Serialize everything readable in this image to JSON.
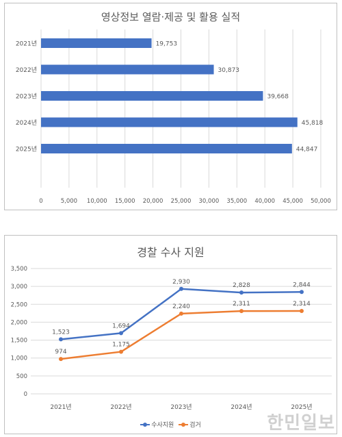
{
  "chart_data": [
    {
      "type": "bar",
      "orientation": "horizontal",
      "title": "영상정보 열람·제공 및 활용 실적",
      "categories": [
        "2021년",
        "2022년",
        "2023년",
        "2024년",
        "2025년"
      ],
      "values": [
        19753,
        30873,
        39668,
        45818,
        44847
      ],
      "value_labels": [
        "19,753",
        "30,873",
        "39,668",
        "45,818",
        "44,847"
      ],
      "xlim": [
        0,
        50000
      ],
      "x_ticks": [
        0,
        5000,
        10000,
        15000,
        20000,
        25000,
        30000,
        35000,
        40000,
        45000,
        50000
      ],
      "x_tick_labels": [
        "0",
        "5,000",
        "10,000",
        "15,000",
        "20,000",
        "25,000",
        "30,000",
        "35,000",
        "40,000",
        "45,000",
        "50,000"
      ],
      "grid": "vertical",
      "color": "#4472c4"
    },
    {
      "type": "line",
      "title": "경찰 수사 지원",
      "categories": [
        "2021년",
        "2022년",
        "2023년",
        "2024년",
        "2025년"
      ],
      "series": [
        {
          "name": "수사지원",
          "values": [
            1523,
            1694,
            2930,
            2828,
            2844
          ],
          "labels": [
            "1,523",
            "1,694",
            "2,930",
            "2,828",
            "2,844"
          ],
          "color": "#4472c4"
        },
        {
          "name": "검거",
          "values": [
            974,
            1175,
            2240,
            2311,
            2314
          ],
          "labels": [
            "974",
            "1,175",
            "2,240",
            "2,311",
            "2,314"
          ],
          "color": "#ed7d31"
        }
      ],
      "ylim": [
        0,
        3500
      ],
      "y_ticks": [
        0,
        500,
        1000,
        1500,
        2000,
        2500,
        3000,
        3500
      ],
      "y_tick_labels": [
        "0",
        "500",
        "1,000",
        "1,500",
        "2,000",
        "2,500",
        "3,000",
        "3,500"
      ],
      "grid": "horizontal",
      "legend_position": "bottom"
    }
  ],
  "watermark": "한민일보"
}
